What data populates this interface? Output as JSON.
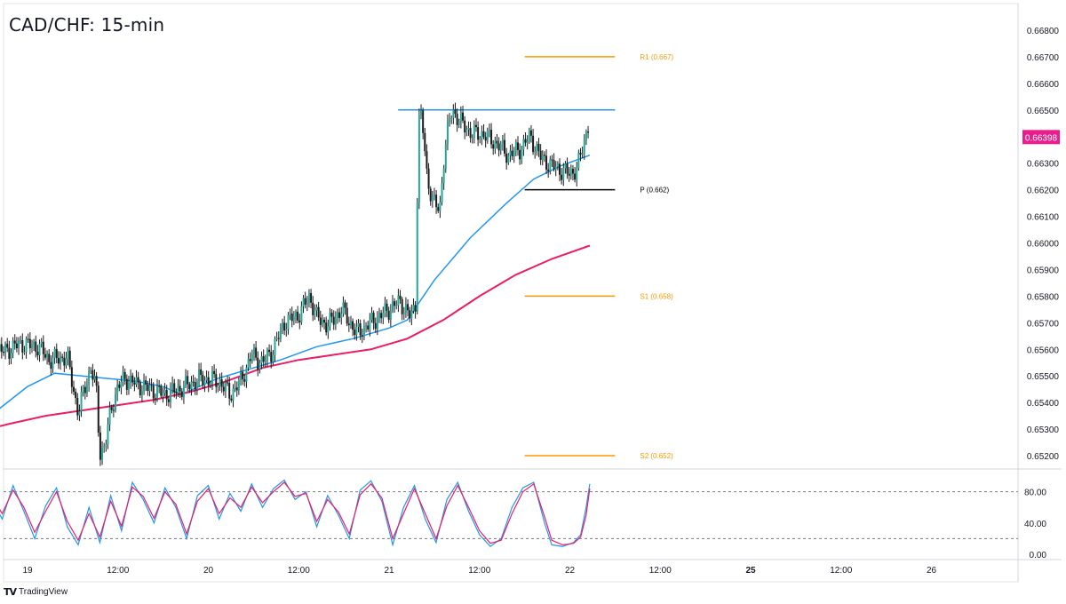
{
  "app": {
    "brand": "TradingView",
    "brand_logo": "tradingview-logo"
  },
  "chart_data": [
    {
      "type": "candlestick",
      "title": "CAD/CHF: 15-min",
      "ylim": [
        0.6515,
        0.669
      ],
      "y_ticks": [
        "0.66800",
        "0.66700",
        "0.66600",
        "0.66500",
        "0.66400",
        "0.66300",
        "0.66200",
        "0.66100",
        "0.66000",
        "0.65900",
        "0.65800",
        "0.65700",
        "0.65600",
        "0.65500",
        "0.65400",
        "0.65300",
        "0.65200"
      ],
      "y_tick_values": [
        0.668,
        0.667,
        0.666,
        0.665,
        0.664,
        0.663,
        0.662,
        0.661,
        0.66,
        0.659,
        0.658,
        0.657,
        0.656,
        0.655,
        0.654,
        0.653,
        0.652
      ],
      "x_ticks": [
        "19",
        "12:00",
        "20",
        "12:00",
        "21",
        "12:00",
        "22",
        "12:00",
        "25",
        "12:00",
        "26"
      ],
      "x_tick_values": [
        1,
        1.5,
        2,
        2.5,
        3,
        3.5,
        4,
        4.5,
        5,
        5.5,
        6
      ],
      "x_tick_bold": [
        false,
        false,
        false,
        false,
        false,
        false,
        false,
        false,
        true,
        false,
        false
      ],
      "last_price": "0.66398",
      "last_price_value": 0.66398,
      "colors": {
        "up": "#26a69a",
        "down": "#1b1b1b",
        "wick": "#1b1b1b",
        "ma_fast": "#2196f3",
        "ma_slow": "#e91e63",
        "resistance": "#2196f3",
        "pivot": "#000000",
        "sr": "#ff9800",
        "last_price_bg": "#e91e8c"
      },
      "price_path": [
        [
          0.72,
          0.6559
        ],
        [
          0.78,
          0.6563
        ],
        [
          0.86,
          0.6559
        ],
        [
          0.96,
          0.6562
        ],
        [
          1.06,
          0.6561
        ],
        [
          1.12,
          0.6556
        ],
        [
          1.22,
          0.6557
        ],
        [
          1.28,
          0.6536
        ],
        [
          1.31,
          0.6544
        ],
        [
          1.35,
          0.6553
        ],
        [
          1.38,
          0.6545
        ],
        [
          1.4,
          0.6521
        ],
        [
          1.43,
          0.6524
        ],
        [
          1.46,
          0.6537
        ],
        [
          1.5,
          0.6546
        ],
        [
          1.54,
          0.6549
        ],
        [
          1.6,
          0.6547
        ],
        [
          1.68,
          0.6545
        ],
        [
          1.76,
          0.6543
        ],
        [
          1.84,
          0.6545
        ],
        [
          1.9,
          0.6547
        ],
        [
          1.96,
          0.6549
        ],
        [
          2.06,
          0.6548
        ],
        [
          2.12,
          0.6543
        ],
        [
          2.18,
          0.6548
        ],
        [
          2.24,
          0.6558
        ],
        [
          2.3,
          0.6555
        ],
        [
          2.36,
          0.656
        ],
        [
          2.42,
          0.657
        ],
        [
          2.5,
          0.6573
        ],
        [
          2.56,
          0.658
        ],
        [
          2.6,
          0.6572
        ],
        [
          2.66,
          0.6569
        ],
        [
          2.74,
          0.6575
        ],
        [
          2.82,
          0.6566
        ],
        [
          2.9,
          0.657
        ],
        [
          2.98,
          0.6574
        ],
        [
          3.06,
          0.6578
        ],
        [
          3.12,
          0.6572
        ],
        [
          3.15,
          0.6578
        ],
        [
          3.16,
          0.6645
        ],
        [
          3.18,
          0.6648
        ],
        [
          3.21,
          0.6625
        ],
        [
          3.24,
          0.6616
        ],
        [
          3.28,
          0.6612
        ],
        [
          3.3,
          0.663
        ],
        [
          3.33,
          0.6645
        ],
        [
          3.35,
          0.665
        ],
        [
          3.4,
          0.6645
        ],
        [
          3.46,
          0.6641
        ],
        [
          3.52,
          0.6641
        ],
        [
          3.6,
          0.6637
        ],
        [
          3.66,
          0.6633
        ],
        [
          3.72,
          0.6635
        ],
        [
          3.78,
          0.664
        ],
        [
          3.84,
          0.6632
        ],
        [
          3.9,
          0.6629
        ],
        [
          3.96,
          0.6627
        ],
        [
          4.0,
          0.6626
        ],
        [
          4.04,
          0.6628
        ],
        [
          4.08,
          0.6638
        ],
        [
          4.1,
          0.6645
        ],
        [
          4.11,
          0.664
        ]
      ],
      "series": [
        {
          "name": "ma_fast",
          "points": [
            [
              0.72,
              0.6529
            ],
            [
              0.85,
              0.6538
            ],
            [
              1.0,
              0.6546
            ],
            [
              1.15,
              0.6551
            ],
            [
              1.3,
              0.655
            ],
            [
              1.45,
              0.6549
            ],
            [
              1.6,
              0.6548
            ],
            [
              1.75,
              0.6546
            ],
            [
              1.85,
              0.6543
            ],
            [
              1.95,
              0.6546
            ],
            [
              2.05,
              0.6549
            ],
            [
              2.2,
              0.6552
            ],
            [
              2.4,
              0.6556
            ],
            [
              2.6,
              0.6561
            ],
            [
              2.8,
              0.6564
            ],
            [
              3.0,
              0.6568
            ],
            [
              3.1,
              0.6571
            ],
            [
              3.25,
              0.6586
            ],
            [
              3.45,
              0.6602
            ],
            [
              3.65,
              0.6615
            ],
            [
              3.8,
              0.6624
            ],
            [
              3.95,
              0.6629
            ],
            [
              4.11,
              0.6633
            ]
          ]
        },
        {
          "name": "ma_slow",
          "points": [
            [
              0.72,
              0.6529
            ],
            [
              0.9,
              0.6532
            ],
            [
              1.1,
              0.6535
            ],
            [
              1.3,
              0.6537
            ],
            [
              1.5,
              0.6539
            ],
            [
              1.7,
              0.6541
            ],
            [
              1.9,
              0.6544
            ],
            [
              2.1,
              0.6548
            ],
            [
              2.3,
              0.6553
            ],
            [
              2.5,
              0.6556
            ],
            [
              2.7,
              0.6558
            ],
            [
              2.9,
              0.656
            ],
            [
              3.1,
              0.6564
            ],
            [
              3.3,
              0.6571
            ],
            [
              3.5,
              0.658
            ],
            [
              3.7,
              0.6588
            ],
            [
              3.9,
              0.6594
            ],
            [
              4.11,
              0.6599
            ]
          ]
        }
      ],
      "levels": [
        {
          "label": "R1 (0.667)",
          "value": 0.667,
          "x_start": 3.75,
          "x_end": 4.25,
          "kind": "sr"
        },
        {
          "label": "",
          "value": 0.665,
          "x_start": 3.05,
          "x_end": 4.25,
          "kind": "resistance"
        },
        {
          "label": "P (0.662)",
          "value": 0.662,
          "x_start": 3.75,
          "x_end": 4.25,
          "kind": "pivot"
        },
        {
          "label": "S1 (0.658)",
          "value": 0.658,
          "x_start": 3.75,
          "x_end": 4.25,
          "kind": "sr"
        },
        {
          "label": "S2 (0.652)",
          "value": 0.652,
          "x_start": 3.75,
          "x_end": 4.25,
          "kind": "sr"
        }
      ]
    },
    {
      "type": "line",
      "ylim": [
        0,
        100
      ],
      "y_ticks": [
        "80.00",
        "40.00",
        "0.00"
      ],
      "y_tick_values": [
        80,
        40,
        0
      ],
      "guides": [
        80,
        20
      ],
      "series": [
        {
          "name": "k",
          "color": "#2196f3",
          "points": [
            [
              0.72,
              90
            ],
            [
              0.8,
              70
            ],
            [
              0.86,
              45
            ],
            [
              0.92,
              88
            ],
            [
              0.98,
              55
            ],
            [
              1.04,
              20
            ],
            [
              1.1,
              62
            ],
            [
              1.16,
              85
            ],
            [
              1.22,
              35
            ],
            [
              1.28,
              12
            ],
            [
              1.34,
              60
            ],
            [
              1.4,
              15
            ],
            [
              1.46,
              75
            ],
            [
              1.52,
              30
            ],
            [
              1.58,
              92
            ],
            [
              1.64,
              70
            ],
            [
              1.7,
              40
            ],
            [
              1.76,
              85
            ],
            [
              1.82,
              60
            ],
            [
              1.88,
              20
            ],
            [
              1.94,
              75
            ],
            [
              2.0,
              88
            ],
            [
              2.06,
              45
            ],
            [
              2.12,
              78
            ],
            [
              2.18,
              55
            ],
            [
              2.24,
              90
            ],
            [
              2.3,
              60
            ],
            [
              2.36,
              84
            ],
            [
              2.42,
              95
            ],
            [
              2.48,
              70
            ],
            [
              2.54,
              80
            ],
            [
              2.6,
              35
            ],
            [
              2.66,
              75
            ],
            [
              2.72,
              50
            ],
            [
              2.78,
              20
            ],
            [
              2.84,
              82
            ],
            [
              2.9,
              94
            ],
            [
              2.96,
              68
            ],
            [
              3.02,
              12
            ],
            [
              3.08,
              60
            ],
            [
              3.14,
              88
            ],
            [
              3.2,
              45
            ],
            [
              3.26,
              15
            ],
            [
              3.32,
              70
            ],
            [
              3.38,
              92
            ],
            [
              3.44,
              55
            ],
            [
              3.5,
              25
            ],
            [
              3.56,
              10
            ],
            [
              3.62,
              20
            ],
            [
              3.68,
              60
            ],
            [
              3.74,
              85
            ],
            [
              3.8,
              92
            ],
            [
              3.86,
              40
            ],
            [
              3.9,
              12
            ],
            [
              3.96,
              10
            ],
            [
              4.02,
              15
            ],
            [
              4.06,
              25
            ],
            [
              4.09,
              60
            ],
            [
              4.11,
              90
            ]
          ]
        },
        {
          "name": "d",
          "color": "#e91e63",
          "points": [
            [
              0.72,
              86
            ],
            [
              0.8,
              74
            ],
            [
              0.86,
              52
            ],
            [
              0.92,
              82
            ],
            [
              0.98,
              60
            ],
            [
              1.04,
              28
            ],
            [
              1.1,
              55
            ],
            [
              1.16,
              80
            ],
            [
              1.22,
              42
            ],
            [
              1.28,
              18
            ],
            [
              1.34,
              52
            ],
            [
              1.4,
              22
            ],
            [
              1.46,
              68
            ],
            [
              1.52,
              36
            ],
            [
              1.58,
              86
            ],
            [
              1.64,
              74
            ],
            [
              1.7,
              46
            ],
            [
              1.76,
              80
            ],
            [
              1.82,
              64
            ],
            [
              1.88,
              26
            ],
            [
              1.94,
              68
            ],
            [
              2.0,
              84
            ],
            [
              2.06,
              52
            ],
            [
              2.12,
              72
            ],
            [
              2.18,
              60
            ],
            [
              2.24,
              86
            ],
            [
              2.3,
              66
            ],
            [
              2.36,
              80
            ],
            [
              2.42,
              92
            ],
            [
              2.48,
              74
            ],
            [
              2.54,
              78
            ],
            [
              2.6,
              42
            ],
            [
              2.66,
              70
            ],
            [
              2.72,
              54
            ],
            [
              2.78,
              26
            ],
            [
              2.84,
              76
            ],
            [
              2.9,
              90
            ],
            [
              2.96,
              72
            ],
            [
              3.02,
              20
            ],
            [
              3.08,
              52
            ],
            [
              3.14,
              84
            ],
            [
              3.2,
              52
            ],
            [
              3.26,
              20
            ],
            [
              3.32,
              62
            ],
            [
              3.38,
              88
            ],
            [
              3.44,
              60
            ],
            [
              3.5,
              30
            ],
            [
              3.56,
              14
            ],
            [
              3.62,
              18
            ],
            [
              3.68,
              52
            ],
            [
              3.74,
              80
            ],
            [
              3.8,
              90
            ],
            [
              3.86,
              48
            ],
            [
              3.9,
              18
            ],
            [
              3.96,
              12
            ],
            [
              4.02,
              14
            ],
            [
              4.06,
              22
            ],
            [
              4.09,
              50
            ],
            [
              4.11,
              84
            ]
          ]
        }
      ]
    }
  ]
}
